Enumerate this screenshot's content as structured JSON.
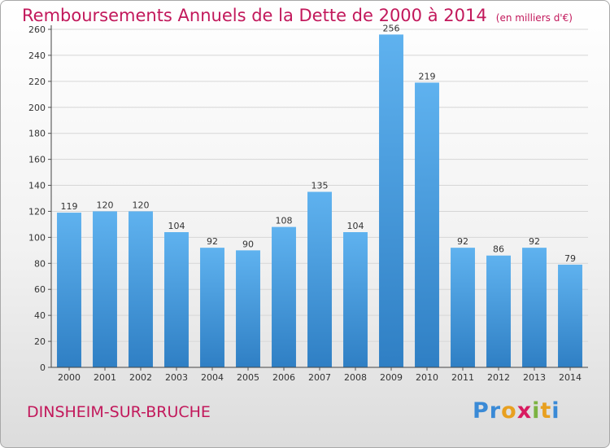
{
  "chart_data": {
    "type": "bar",
    "title": "Remboursements Annuels de la Dette de 2000 à 2014",
    "unit": "(en milliers d'€)",
    "categories": [
      "2000",
      "2001",
      "2002",
      "2003",
      "2004",
      "2005",
      "2006",
      "2007",
      "2008",
      "2009",
      "2010",
      "2011",
      "2012",
      "2013",
      "2014"
    ],
    "values": [
      119,
      120,
      120,
      104,
      92,
      90,
      108,
      135,
      104,
      256,
      219,
      92,
      86,
      92,
      79
    ],
    "value_labels": [
      "119",
      "120",
      "120",
      "104",
      "92",
      "90",
      "108",
      "135",
      "104",
      "256",
      "219",
      "92",
      "86",
      "92",
      "79"
    ],
    "yticks": [
      "0",
      "20",
      "40",
      "60",
      "80",
      "100",
      "120",
      "140",
      "160",
      "180",
      "200",
      "220",
      "240",
      "260"
    ],
    "ylim": [
      0,
      260
    ],
    "grid": true,
    "bar_color": "#4a9ee0",
    "title_color": "#c2185b"
  },
  "footer": {
    "commune": "DINSHEIM-SUR-BRUCHE",
    "logo_letters": [
      "P",
      "r",
      "o",
      "x",
      "i",
      "t",
      "i"
    ],
    "logo_colors": [
      "#3a8ad6",
      "#3a8ad6",
      "#e8a020",
      "#d81b60",
      "#7cb342",
      "#e8a020",
      "#3a8ad6"
    ]
  }
}
